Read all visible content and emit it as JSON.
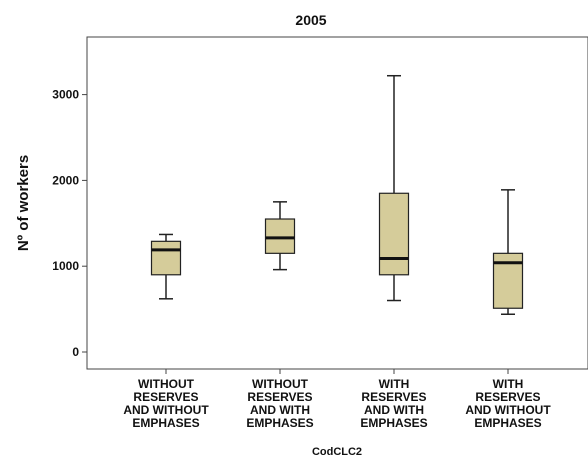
{
  "chart_data": {
    "type": "boxplot",
    "title": "2005",
    "xlabel": "CodCLC2",
    "ylabel": "Nº of workers",
    "ylim": [
      -200,
      3700
    ],
    "yticks": [
      0,
      1000,
      2000,
      3000
    ],
    "grid": false,
    "categories": [
      [
        "WITHOUT",
        "RESERVES",
        "AND WITHOUT",
        "EMPHASES"
      ],
      [
        "WITHOUT",
        "RESERVES",
        "AND WITH",
        "EMPHASES"
      ],
      [
        "WITH",
        "RESERVES",
        "AND WITH",
        "EMPHASES"
      ],
      [
        "WITH",
        "RESERVES",
        "AND WITHOUT",
        "EMPHASES"
      ]
    ],
    "boxes": [
      {
        "min": 620,
        "q1": 900,
        "median": 1190,
        "q3": 1290,
        "max": 1370
      },
      {
        "min": 960,
        "q1": 1150,
        "median": 1330,
        "q3": 1550,
        "max": 1750
      },
      {
        "min": 600,
        "q1": 900,
        "median": 1090,
        "q3": 1850,
        "max": 3220
      },
      {
        "min": 440,
        "q1": 510,
        "median": 1040,
        "q3": 1150,
        "max": 1890
      }
    ],
    "colors": {
      "box_fill": "#d5cc9a",
      "box_stroke": "#222222",
      "plot_bg": "#ffffff",
      "frame": "#444444"
    }
  }
}
